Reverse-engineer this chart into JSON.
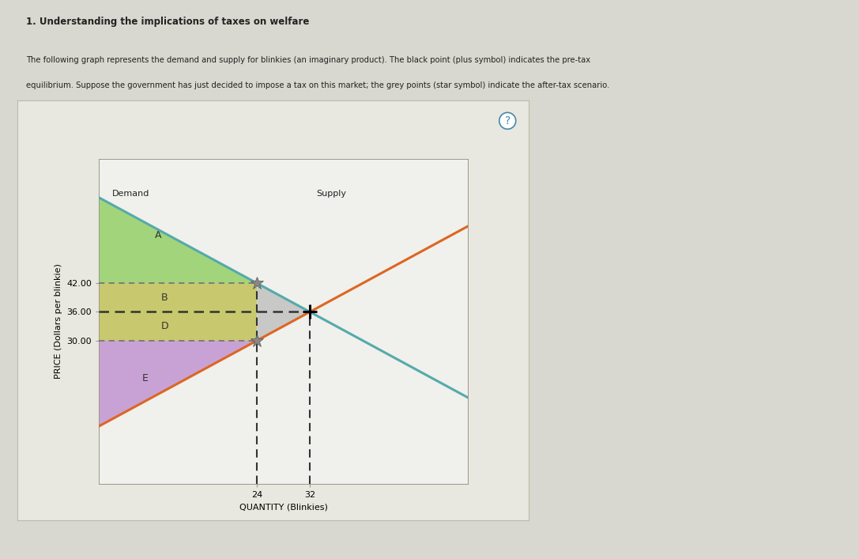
{
  "title": "1. Understanding the implications of taxes on welfare",
  "description_line1": "The following graph represents the demand and supply for blinkies (an imaginary product). The black point (plus symbol) indicates the pre-tax",
  "description_line2": "equilibrium. Suppose the government has just decided to impose a tax on this market; the grey points (star symbol) indicate the after-tax scenario.",
  "xlabel": "QUANTITY (Blinkies)",
  "ylabel": "PRICE (Dollars per blinkie)",
  "xlim": [
    0,
    56
  ],
  "ylim": [
    0,
    68
  ],
  "q_tax": 24,
  "q_eq": 32,
  "p_buyer": 42,
  "p_seller": 30,
  "p_eq": 36,
  "demand_intercept": 60,
  "demand_slope": -0.75,
  "supply_intercept": 12,
  "supply_slope": 0.75,
  "demand_color": "#55aaaa",
  "supply_color": "#dd6622",
  "area_A_color": "#88cc55",
  "area_BD_color": "#bbbb44",
  "area_E_color": "#bb88cc",
  "dwl_color": "#999999",
  "pretax_color": "black",
  "aftertax_color": "#888888",
  "label_A": "A",
  "label_B": "B",
  "label_D": "D",
  "label_E": "E",
  "demand_label": "Demand",
  "supply_label": "Supply",
  "yticks": [
    30.0,
    36.0,
    42.0
  ],
  "xticks": [
    24,
    32
  ],
  "page_bg": "#d8d8d0",
  "panel_bg": "#e8e8e0",
  "chart_bg": "#f0f0ec",
  "text_color": "#222222"
}
